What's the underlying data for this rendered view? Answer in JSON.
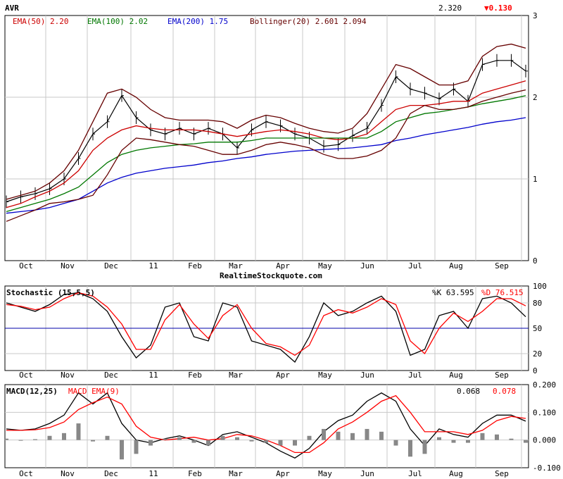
{
  "header": {
    "symbol": "AVR",
    "last_price": "2.320",
    "change": "▼0.130",
    "down_color": "#ff0000"
  },
  "watermark": "RealtimeStockquote.com",
  "price_panel": {
    "legend": [
      {
        "label": "EMA(50) 2.20",
        "color": "#cc0000"
      },
      {
        "label": "EMA(100) 2.02",
        "color": "#007700"
      },
      {
        "label": "EMA(200) 1.75",
        "color": "#0000cc"
      },
      {
        "label": "Bollinger(20) 2.601 2.094",
        "color": "#660000"
      }
    ]
  },
  "stoch_panel": {
    "title": "Stochastic (15,5,5)",
    "k_label": "%K 63.595",
    "d_label": "%D 76.515",
    "k_color": "#000000",
    "d_color": "#ff0000"
  },
  "macd_panel": {
    "title": "MACD(12,25)",
    "signal_title": "MACD EMA(9)",
    "macd_value": "0.068",
    "signal_value": "0.078",
    "signal_color": "#ff0000"
  },
  "chart_data": [
    {
      "type": "line",
      "title": "AVR",
      "x_labels": [
        "Oct",
        "Nov",
        "Dec",
        "11",
        "Feb",
        "Mar",
        "Apr",
        "May",
        "Jun",
        "Jul",
        "Aug",
        "Sep"
      ],
      "ylim": [
        0,
        3
      ],
      "yticks": [
        "0",
        "1",
        "2",
        "3"
      ],
      "grid": true,
      "legend_placement": "top-left",
      "series": [
        {
          "name": "Price",
          "color": "#000000",
          "values": [
            0.72,
            0.78,
            0.82,
            0.88,
            1.0,
            1.25,
            1.55,
            1.7,
            2.02,
            1.75,
            1.6,
            1.55,
            1.62,
            1.55,
            1.62,
            1.55,
            1.38,
            1.6,
            1.7,
            1.65,
            1.55,
            1.5,
            1.4,
            1.42,
            1.53,
            1.62,
            1.9,
            2.25,
            2.1,
            2.05,
            1.98,
            2.1,
            1.95,
            2.4,
            2.45,
            2.45,
            2.32
          ]
        },
        {
          "name": "EMA(50)",
          "color": "#cc0000",
          "values": [
            0.65,
            0.7,
            0.78,
            0.85,
            0.95,
            1.1,
            1.35,
            1.5,
            1.6,
            1.65,
            1.62,
            1.6,
            1.6,
            1.6,
            1.58,
            1.55,
            1.52,
            1.55,
            1.58,
            1.6,
            1.58,
            1.55,
            1.5,
            1.48,
            1.5,
            1.55,
            1.7,
            1.85,
            1.9,
            1.9,
            1.92,
            1.95,
            1.95,
            2.05,
            2.1,
            2.15,
            2.2
          ]
        },
        {
          "name": "EMA(100)",
          "color": "#007700",
          "values": [
            0.6,
            0.65,
            0.7,
            0.75,
            0.82,
            0.9,
            1.05,
            1.2,
            1.3,
            1.35,
            1.38,
            1.4,
            1.42,
            1.43,
            1.45,
            1.45,
            1.45,
            1.47,
            1.5,
            1.5,
            1.5,
            1.5,
            1.5,
            1.5,
            1.5,
            1.5,
            1.58,
            1.7,
            1.75,
            1.8,
            1.82,
            1.85,
            1.88,
            1.92,
            1.95,
            1.98,
            2.02
          ]
        },
        {
          "name": "EMA(200)",
          "color": "#0000cc",
          "values": [
            0.58,
            0.6,
            0.62,
            0.65,
            0.7,
            0.75,
            0.85,
            0.95,
            1.02,
            1.07,
            1.1,
            1.13,
            1.15,
            1.17,
            1.2,
            1.22,
            1.25,
            1.27,
            1.3,
            1.32,
            1.34,
            1.35,
            1.36,
            1.37,
            1.38,
            1.4,
            1.42,
            1.47,
            1.5,
            1.54,
            1.57,
            1.6,
            1.63,
            1.67,
            1.7,
            1.72,
            1.75
          ]
        },
        {
          "name": "Bollinger upper",
          "color": "#660000",
          "values": [
            0.75,
            0.8,
            0.85,
            0.95,
            1.1,
            1.35,
            1.7,
            2.05,
            2.1,
            2.0,
            1.85,
            1.75,
            1.72,
            1.72,
            1.72,
            1.7,
            1.62,
            1.72,
            1.78,
            1.75,
            1.68,
            1.62,
            1.58,
            1.56,
            1.62,
            1.8,
            2.1,
            2.4,
            2.35,
            2.25,
            2.15,
            2.15,
            2.2,
            2.5,
            2.62,
            2.65,
            2.6
          ]
        },
        {
          "name": "Bollinger lower",
          "color": "#660000",
          "values": [
            0.48,
            0.55,
            0.62,
            0.7,
            0.72,
            0.75,
            0.8,
            1.05,
            1.35,
            1.5,
            1.48,
            1.45,
            1.42,
            1.4,
            1.35,
            1.3,
            1.3,
            1.35,
            1.42,
            1.45,
            1.42,
            1.38,
            1.3,
            1.25,
            1.25,
            1.28,
            1.35,
            1.5,
            1.8,
            1.9,
            1.85,
            1.85,
            1.88,
            1.95,
            2.0,
            2.05,
            2.09
          ]
        }
      ]
    },
    {
      "type": "line",
      "title": "Stochastic (15,5,5)",
      "x_labels": [
        "Oct",
        "Nov",
        "Dec",
        "11",
        "Feb",
        "Mar",
        "Apr",
        "May",
        "Jun",
        "Jul",
        "Aug",
        "Sep"
      ],
      "ylim": [
        0,
        100
      ],
      "yticks": [
        "0",
        "20",
        "50",
        "80",
        "100"
      ],
      "reference_line": 50,
      "series": [
        {
          "name": "%K",
          "color": "#000000",
          "values": [
            80,
            75,
            70,
            78,
            90,
            92,
            85,
            70,
            40,
            15,
            30,
            75,
            80,
            40,
            35,
            80,
            75,
            35,
            30,
            25,
            10,
            40,
            80,
            65,
            70,
            80,
            88,
            70,
            18,
            25,
            65,
            70,
            50,
            85,
            88,
            80,
            63.6
          ]
        },
        {
          "name": "%D",
          "color": "#ff0000",
          "values": [
            78,
            76,
            72,
            75,
            85,
            92,
            88,
            75,
            55,
            25,
            25,
            60,
            78,
            55,
            38,
            65,
            78,
            50,
            32,
            28,
            18,
            30,
            65,
            72,
            68,
            75,
            85,
            78,
            35,
            20,
            50,
            68,
            58,
            70,
            85,
            85,
            76.5
          ]
        }
      ]
    },
    {
      "type": "line",
      "title": "MACD(12,25)",
      "x_labels": [
        "Oct",
        "Nov",
        "Dec",
        "11",
        "Feb",
        "Mar",
        "Apr",
        "May",
        "Jun",
        "Jul",
        "Aug",
        "Sep"
      ],
      "ylim": [
        -0.1,
        0.2
      ],
      "yticks": [
        "-0.100",
        "0.000",
        "0.100",
        "0.200"
      ],
      "series": [
        {
          "name": "MACD",
          "color": "#000000",
          "values": [
            0.04,
            0.035,
            0.04,
            0.06,
            0.09,
            0.17,
            0.13,
            0.17,
            0.06,
            0.0,
            -0.01,
            0.005,
            0.015,
            0.0,
            -0.02,
            0.02,
            0.03,
            0.01,
            -0.01,
            -0.04,
            -0.065,
            -0.03,
            0.03,
            0.07,
            0.09,
            0.14,
            0.17,
            0.14,
            0.04,
            -0.02,
            0.04,
            0.02,
            0.01,
            0.06,
            0.09,
            0.09,
            0.068
          ]
        },
        {
          "name": "MACD EMA(9)",
          "color": "#ff0000",
          "values": [
            0.035,
            0.035,
            0.037,
            0.045,
            0.065,
            0.11,
            0.135,
            0.155,
            0.13,
            0.05,
            0.01,
            0.0,
            0.005,
            0.01,
            0.0,
            0.005,
            0.02,
            0.015,
            0.0,
            -0.02,
            -0.045,
            -0.045,
            -0.01,
            0.04,
            0.065,
            0.1,
            0.14,
            0.16,
            0.1,
            0.03,
            0.03,
            0.03,
            0.02,
            0.035,
            0.07,
            0.085,
            0.078
          ]
        },
        {
          "name": "Histogram",
          "color": "#888888",
          "values": [
            0.005,
            0.0,
            0.003,
            0.015,
            0.025,
            0.06,
            -0.005,
            0.015,
            -0.07,
            -0.05,
            -0.02,
            0.005,
            0.01,
            -0.01,
            -0.02,
            0.015,
            0.01,
            -0.005,
            -0.01,
            -0.02,
            -0.02,
            0.015,
            0.04,
            0.03,
            0.025,
            0.04,
            0.03,
            -0.02,
            -0.06,
            -0.05,
            0.01,
            -0.01,
            -0.01,
            0.025,
            0.02,
            0.005,
            -0.01
          ]
        }
      ]
    }
  ]
}
